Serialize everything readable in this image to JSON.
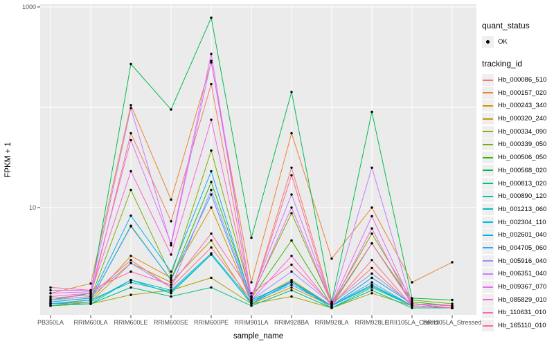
{
  "legend": {
    "quant_status": {
      "title": "quant_status",
      "items": [
        {
          "label": "OK",
          "key_icon": "black-point",
          "point_color": "#000000"
        }
      ]
    },
    "tracking_id": {
      "title": "tracking_id"
    }
  },
  "chart_data": {
    "type": "line",
    "title": "",
    "xlabel": "sample_name",
    "ylabel": "FPKM + 1",
    "y_scale": "log10",
    "ylim": [
      0.85,
      1100
    ],
    "y_tick_labels": [
      "10",
      "1000"
    ],
    "y_gridlines": [
      10,
      100,
      1000
    ],
    "grid": "on",
    "legend_position": "right",
    "panel_background": "#ebebeb",
    "gridline_color": "#ffffff",
    "point_color": "#000000",
    "axis_text_color": "#4d4d4d",
    "categories": [
      "PB350LA",
      "RRIM600LA",
      "RRIM600LE",
      "RRIM600SE",
      "RRIM600PE",
      "RRIM901LA",
      "RRIM928BA",
      "RRIM928LA",
      "RRIM928LE",
      "RRII105LA_Control",
      "RRII105LA_Stressed"
    ],
    "series": [
      {
        "name": "Hb_000086_510",
        "color": "#F8766D",
        "values": [
          1.2,
          1.3,
          55,
          7.3,
          170,
          1.2,
          25,
          1.1,
          2.5,
          1.05,
          1.0
        ]
      },
      {
        "name": "Hb_000157_020",
        "color": "#EA8331",
        "values": [
          1.4,
          1.75,
          105,
          12,
          280,
          1.8,
          55,
          3.1,
          10,
          1.8,
          2.85
        ]
      },
      {
        "name": "Hb_000243_340",
        "color": "#D89000",
        "values": [
          1.1,
          1.2,
          3.3,
          2.0,
          10,
          1.15,
          1.9,
          1.05,
          2.0,
          1.1,
          1.05
        ]
      },
      {
        "name": "Hb_000320_240",
        "color": "#C09B00",
        "values": [
          1.05,
          1.15,
          2.8,
          1.8,
          4.7,
          1.1,
          1.6,
          1.05,
          1.7,
          1.05,
          1.0
        ]
      },
      {
        "name": "Hb_000334_090",
        "color": "#A3A500",
        "values": [
          1.1,
          1.1,
          1.35,
          1.5,
          2.0,
          1.1,
          1.3,
          1.0,
          1.4,
          1.05,
          1.0
        ]
      },
      {
        "name": "Hb_000339_050",
        "color": "#7CAE00",
        "values": [
          1.15,
          1.25,
          15,
          2.1,
          37,
          1.3,
          8.8,
          1.1,
          5.5,
          1.2,
          1.1
        ]
      },
      {
        "name": "Hb_000506_050",
        "color": "#39B600",
        "values": [
          1.1,
          1.2,
          6.6,
          1.9,
          18,
          1.25,
          4.7,
          1.05,
          4.4,
          1.15,
          1.05
        ]
      },
      {
        "name": "Hb_000568_020",
        "color": "#00BB4E",
        "values": [
          1.2,
          1.4,
          270,
          95,
          780,
          5.0,
          142,
          1.15,
          90,
          1.25,
          1.2
        ]
      },
      {
        "name": "Hb_000813_020",
        "color": "#00BF7D",
        "values": [
          1.05,
          1.1,
          1.6,
          1.3,
          1.6,
          1.05,
          1.5,
          1.0,
          1.5,
          1.0,
          1.0
        ]
      },
      {
        "name": "Hb_000890_120",
        "color": "#00C1A3",
        "values": [
          1.05,
          1.1,
          1.9,
          1.4,
          3.4,
          1.1,
          1.8,
          1.0,
          1.6,
          1.05,
          1.0
        ]
      },
      {
        "name": "Hb_001213_060",
        "color": "#00BFC4",
        "values": [
          1.1,
          1.15,
          1.9,
          1.5,
          3.5,
          1.15,
          1.85,
          1.05,
          1.7,
          1.05,
          1.0
        ]
      },
      {
        "name": "Hb_002304_110",
        "color": "#00BAE0",
        "values": [
          1.1,
          1.2,
          1.8,
          1.45,
          3.4,
          1.1,
          1.8,
          1.05,
          1.65,
          1.05,
          1.0
        ]
      },
      {
        "name": "Hb_002601_040",
        "color": "#00B0F6",
        "values": [
          1.15,
          1.25,
          8.3,
          2.3,
          23,
          1.2,
          1.8,
          1.05,
          2.0,
          1.1,
          1.0
        ]
      },
      {
        "name": "Hb_004705_060",
        "color": "#35A2FF",
        "values": [
          1.1,
          1.2,
          6.5,
          1.9,
          13.5,
          1.15,
          1.7,
          1.05,
          1.8,
          1.05,
          1.0
        ]
      },
      {
        "name": "Hb_005916_040",
        "color": "#9590FF",
        "values": [
          1.2,
          1.3,
          2.8,
          1.6,
          15,
          1.2,
          2.3,
          1.1,
          2.2,
          1.1,
          1.05
        ]
      },
      {
        "name": "Hb_006351_040",
        "color": "#C77CFF",
        "values": [
          1.5,
          1.5,
          98,
          4.2,
          290,
          1.3,
          13.5,
          1.1,
          25,
          1.1,
          1.05
        ]
      },
      {
        "name": "Hb_009367_070",
        "color": "#E76BF3",
        "values": [
          1.4,
          1.45,
          47,
          4.4,
          340,
          1.25,
          10,
          1.1,
          8.2,
          1.1,
          1.0
        ]
      },
      {
        "name": "Hb_085829_010",
        "color": "#FA62DB",
        "values": [
          1.3,
          1.4,
          23,
          3.4,
          75,
          1.2,
          3.3,
          1.05,
          6.2,
          1.05,
          1.0
        ]
      },
      {
        "name": "Hb_110631_010",
        "color": "#FF62BC",
        "values": [
          1.6,
          1.5,
          2.3,
          1.7,
          5.5,
          1.4,
          2.7,
          1.1,
          4.4,
          1.1,
          1.05
        ]
      },
      {
        "name": "Hb_165110_010",
        "color": "#FF6A98",
        "values": [
          1.25,
          1.35,
          3.0,
          1.6,
          4.0,
          1.2,
          21,
          1.05,
          3.0,
          1.05,
          1.0
        ]
      }
    ]
  }
}
